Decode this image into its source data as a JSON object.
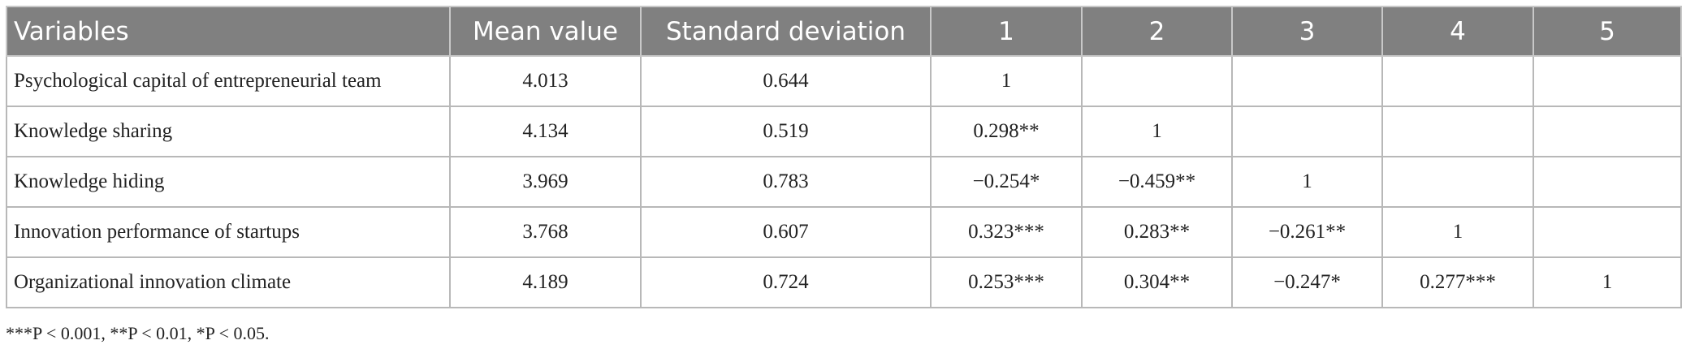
{
  "table": {
    "header": [
      "Variables",
      "Mean value",
      "Standard deviation",
      "1",
      "2",
      "3",
      "4",
      "5"
    ],
    "rows": [
      [
        "Psychological capital of entrepreneurial team",
        "4.013",
        "0.644",
        "1"
      ],
      [
        "Knowledge sharing",
        "4.134",
        "0.519",
        "0.298**",
        "1"
      ],
      [
        "Knowledge hiding",
        "3.969",
        "0.783",
        "−0.254*",
        "−0.459**",
        "1"
      ],
      [
        "Innovation performance of startups",
        "3.768",
        "0.607",
        "0.323***",
        "0.283**",
        "−0.261**",
        "1"
      ],
      [
        "Organizational innovation climate",
        "4.189",
        "0.724",
        "0.253***",
        "0.304**",
        "−0.247*",
        "0.277***",
        "1"
      ]
    ],
    "footnote": "***P < 0.001, **P < 0.01, *P < 0.05."
  }
}
